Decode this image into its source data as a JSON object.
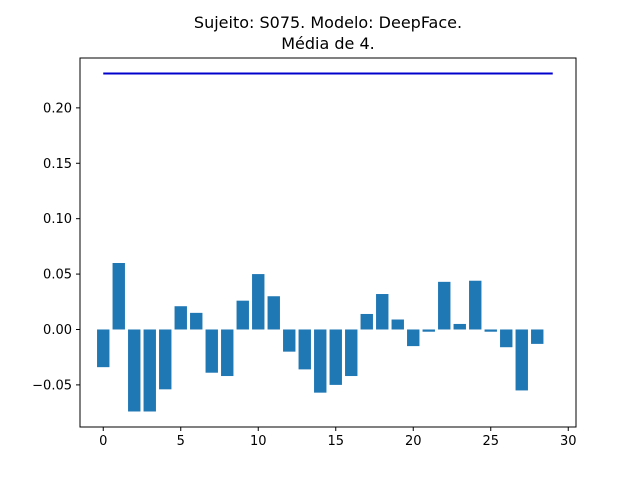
{
  "chart_data": {
    "type": "bar",
    "title": "Sujeito: S075. Modelo: DeepFace.",
    "subtitle": "Média de 4.",
    "xlabel": "",
    "ylabel": "",
    "xlim": [
      -1.5,
      30.5
    ],
    "ylim": [
      -0.088,
      0.245
    ],
    "xticks": [
      0,
      5,
      10,
      15,
      20,
      25,
      30
    ],
    "yticks": [
      -0.05,
      0.0,
      0.05,
      0.1,
      0.15,
      0.2
    ],
    "ytick_labels": [
      "−0.05",
      "0.00",
      "0.05",
      "0.10",
      "0.15",
      "0.20"
    ],
    "x": [
      0,
      1,
      2,
      3,
      4,
      5,
      6,
      7,
      8,
      9,
      10,
      11,
      12,
      13,
      14,
      15,
      16,
      17,
      18,
      19,
      20,
      21,
      22,
      23,
      24,
      25,
      26,
      27,
      28
    ],
    "values": [
      -0.034,
      0.06,
      -0.074,
      -0.074,
      -0.054,
      0.021,
      0.015,
      -0.039,
      -0.042,
      0.026,
      0.05,
      0.03,
      -0.02,
      -0.036,
      -0.057,
      -0.05,
      -0.042,
      0.014,
      0.032,
      0.009,
      -0.015,
      -0.002,
      0.043,
      0.005,
      0.044,
      -0.002,
      -0.016,
      -0.055,
      -0.013
    ],
    "bar_color": "#1f77b4",
    "reference_line": {
      "x": [
        0,
        29
      ],
      "y": 0.231,
      "color": "#0000cc"
    },
    "grid": false,
    "legend": "none"
  }
}
